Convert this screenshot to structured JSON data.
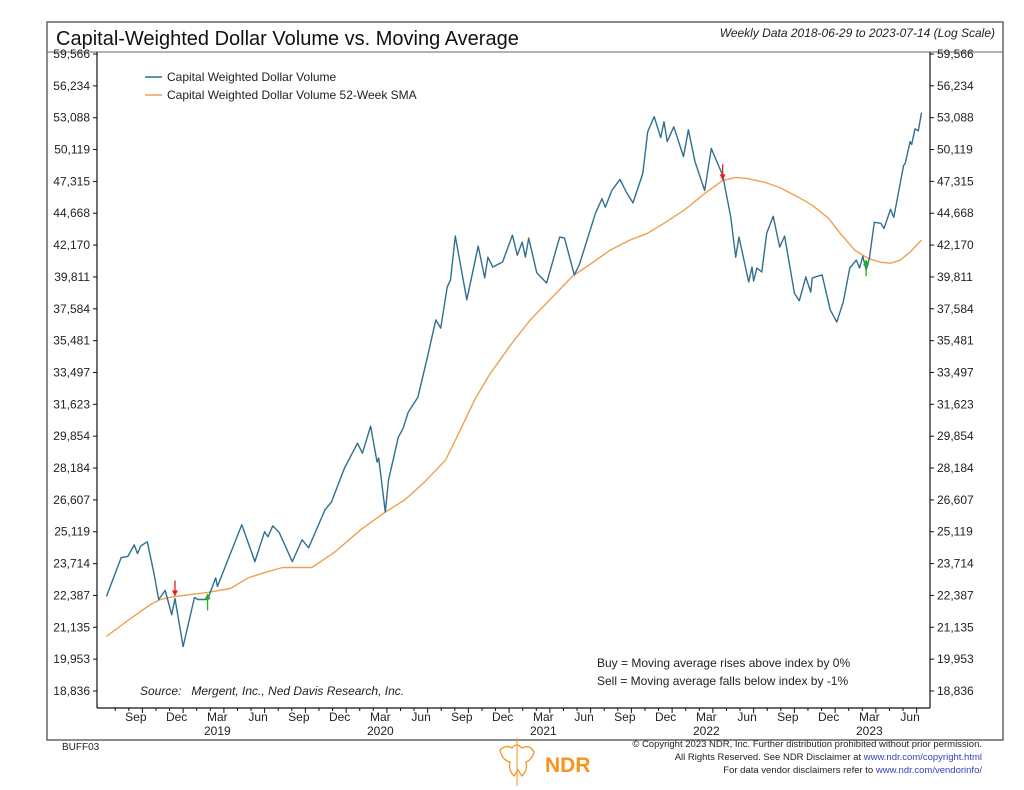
{
  "colors": {
    "volume": "#2f6f8f",
    "sma": "#f0a050",
    "sell": "#e02020",
    "buy": "#20b020",
    "frame": "#555555",
    "ndr_orange": "#f7941d",
    "link": "#3344bb"
  },
  "chart_data": {
    "type": "line",
    "title": "Capital-Weighted Dollar Volume vs. Moving Average",
    "subtitle": "Weekly Data 2018-06-29 to 2023-07-14 (Log Scale)",
    "y_scale": "log",
    "ylim": [
      18400,
      60500
    ],
    "xlim": [
      2018.49,
      2023.54
    ],
    "grid": false,
    "legend_position": "top-left",
    "y_ticks": [
      "59,566",
      "56,234",
      "53,088",
      "50,119",
      "47,315",
      "44,668",
      "42,170",
      "39,811",
      "37,584",
      "35,481",
      "33,497",
      "31,623",
      "29,854",
      "28,184",
      "26,607",
      "25,119",
      "23,714",
      "22,387",
      "21,135",
      "19,953",
      "18,836"
    ],
    "y_tick_values": [
      59566,
      56234,
      53088,
      50119,
      47315,
      44668,
      42170,
      39811,
      37584,
      35481,
      33497,
      31623,
      29854,
      28184,
      26607,
      25119,
      23714,
      22387,
      21135,
      19953,
      18836
    ],
    "x_ticks": [
      {
        "label": "Sep",
        "t": 2018.71
      },
      {
        "label": "Dec",
        "t": 2018.96
      },
      {
        "label": "Mar",
        "t": 2019.21,
        "year": "2019"
      },
      {
        "label": "Jun",
        "t": 2019.46
      },
      {
        "label": "Sep",
        "t": 2019.71
      },
      {
        "label": "Dec",
        "t": 2019.96
      },
      {
        "label": "Mar",
        "t": 2020.21,
        "year": "2020"
      },
      {
        "label": "Jun",
        "t": 2020.46
      },
      {
        "label": "Sep",
        "t": 2020.71
      },
      {
        "label": "Dec",
        "t": 2020.96
      },
      {
        "label": "Mar",
        "t": 2021.21,
        "year": "2021"
      },
      {
        "label": "Jun",
        "t": 2021.46
      },
      {
        "label": "Sep",
        "t": 2021.71
      },
      {
        "label": "Dec",
        "t": 2021.96
      },
      {
        "label": "Mar",
        "t": 2022.21,
        "year": "2022"
      },
      {
        "label": "Jun",
        "t": 2022.46
      },
      {
        "label": "Sep",
        "t": 2022.71
      },
      {
        "label": "Dec",
        "t": 2022.96
      },
      {
        "label": "Mar",
        "t": 2023.21,
        "year": "2023"
      },
      {
        "label": "Jun",
        "t": 2023.46
      }
    ],
    "series": [
      {
        "name": "Capital Weighted Dollar Volume",
        "color_key": "volume",
        "points": [
          [
            2018.53,
            22350
          ],
          [
            2018.62,
            23970
          ],
          [
            2018.66,
            24015
          ],
          [
            2018.7,
            24530
          ],
          [
            2018.72,
            24145
          ],
          [
            2018.74,
            24483
          ],
          [
            2018.78,
            24665
          ],
          [
            2018.82,
            23330
          ],
          [
            2018.85,
            22225
          ],
          [
            2018.89,
            22590
          ],
          [
            2018.93,
            21620
          ],
          [
            2018.95,
            22265
          ],
          [
            2019.0,
            20410
          ],
          [
            2019.07,
            22306
          ],
          [
            2019.09,
            22225
          ],
          [
            2019.15,
            22225
          ],
          [
            2019.2,
            23113
          ],
          [
            2019.21,
            22752
          ],
          [
            2019.36,
            25437
          ],
          [
            2019.44,
            23800
          ],
          [
            2019.5,
            25119
          ],
          [
            2019.52,
            24892
          ],
          [
            2019.55,
            25392
          ],
          [
            2019.59,
            25074
          ],
          [
            2019.67,
            23800
          ],
          [
            2019.73,
            24755
          ],
          [
            2019.77,
            24400
          ],
          [
            2019.87,
            26125
          ],
          [
            2019.91,
            26510
          ],
          [
            2019.99,
            28184
          ],
          [
            2020.07,
            29476
          ],
          [
            2020.1,
            28950
          ],
          [
            2020.15,
            30400
          ],
          [
            2020.19,
            28490
          ],
          [
            2020.2,
            28700
          ],
          [
            2020.24,
            26030
          ],
          [
            2020.26,
            27570
          ],
          [
            2020.32,
            29800
          ],
          [
            2020.35,
            30290
          ],
          [
            2020.38,
            31165
          ],
          [
            2020.44,
            32025
          ],
          [
            2020.5,
            34490
          ],
          [
            2020.55,
            36840
          ],
          [
            2020.58,
            36290
          ],
          [
            2020.62,
            39090
          ],
          [
            2020.64,
            39595
          ],
          [
            2020.67,
            42860
          ],
          [
            2020.74,
            38200
          ],
          [
            2020.81,
            42094
          ],
          [
            2020.85,
            39740
          ],
          [
            2020.87,
            41255
          ],
          [
            2020.9,
            40535
          ],
          [
            2020.96,
            40900
          ],
          [
            2021.02,
            42935
          ],
          [
            2021.05,
            41410
          ],
          [
            2021.08,
            42400
          ],
          [
            2021.1,
            41255
          ],
          [
            2021.12,
            42705
          ],
          [
            2021.17,
            40100
          ],
          [
            2021.23,
            39380
          ],
          [
            2021.31,
            42780
          ],
          [
            2021.34,
            42705
          ],
          [
            2021.4,
            39955
          ],
          [
            2021.43,
            40680
          ],
          [
            2021.53,
            44668
          ],
          [
            2021.57,
            45860
          ],
          [
            2021.59,
            45155
          ],
          [
            2021.63,
            46545
          ],
          [
            2021.68,
            47485
          ],
          [
            2021.72,
            46375
          ],
          [
            2021.76,
            45515
          ],
          [
            2021.82,
            48000
          ],
          [
            2021.85,
            51750
          ],
          [
            2021.89,
            53185
          ],
          [
            2021.93,
            51210
          ],
          [
            2021.95,
            52705
          ],
          [
            2021.97,
            50845
          ],
          [
            2022.01,
            52225
          ],
          [
            2022.07,
            49485
          ],
          [
            2022.1,
            51940
          ],
          [
            2022.14,
            49030
          ],
          [
            2022.2,
            46545
          ],
          [
            2022.24,
            50210
          ],
          [
            2022.31,
            47830
          ],
          [
            2022.36,
            44345
          ],
          [
            2022.39,
            41255
          ],
          [
            2022.41,
            42780
          ],
          [
            2022.47,
            39450
          ],
          [
            2022.49,
            40535
          ],
          [
            2022.5,
            39520
          ],
          [
            2022.52,
            40460
          ],
          [
            2022.55,
            40170
          ],
          [
            2022.58,
            43085
          ],
          [
            2022.62,
            44425
          ],
          [
            2022.66,
            42015
          ],
          [
            2022.69,
            42860
          ],
          [
            2022.75,
            38665
          ],
          [
            2022.78,
            38130
          ],
          [
            2022.82,
            39811
          ],
          [
            2022.85,
            38730
          ],
          [
            2022.86,
            39740
          ],
          [
            2022.92,
            39955
          ],
          [
            2022.97,
            37515
          ],
          [
            2023.01,
            36700
          ],
          [
            2023.05,
            38060
          ],
          [
            2023.09,
            40460
          ],
          [
            2023.13,
            41040
          ],
          [
            2023.15,
            40460
          ],
          [
            2023.17,
            41330
          ],
          [
            2023.19,
            40315
          ],
          [
            2023.21,
            41180
          ],
          [
            2023.24,
            43940
          ],
          [
            2023.28,
            43860
          ],
          [
            2023.3,
            43455
          ],
          [
            2023.34,
            44990
          ],
          [
            2023.36,
            44345
          ],
          [
            2023.42,
            48700
          ],
          [
            2023.43,
            48870
          ],
          [
            2023.46,
            50845
          ],
          [
            2023.47,
            50575
          ],
          [
            2023.49,
            52030
          ],
          [
            2023.51,
            51840
          ],
          [
            2023.53,
            53570
          ]
        ]
      },
      {
        "name": "Capital Weighted Dollar Volume 52-Week SMA",
        "color_key": "sma",
        "points": [
          [
            2018.53,
            20790
          ],
          [
            2018.67,
            21440
          ],
          [
            2018.8,
            22025
          ],
          [
            2018.86,
            22225
          ],
          [
            2018.95,
            22347
          ],
          [
            2019.15,
            22510
          ],
          [
            2019.29,
            22670
          ],
          [
            2019.4,
            23113
          ],
          [
            2019.5,
            23330
          ],
          [
            2019.61,
            23545
          ],
          [
            2019.79,
            23545
          ],
          [
            2019.93,
            24210
          ],
          [
            2020.09,
            25210
          ],
          [
            2020.24,
            26030
          ],
          [
            2020.36,
            26607
          ],
          [
            2020.48,
            27470
          ],
          [
            2020.61,
            28595
          ],
          [
            2020.7,
            30180
          ],
          [
            2020.79,
            31910
          ],
          [
            2020.88,
            33375
          ],
          [
            2021.01,
            35225
          ],
          [
            2021.13,
            36840
          ],
          [
            2021.25,
            38200
          ],
          [
            2021.39,
            39880
          ],
          [
            2021.5,
            40755
          ],
          [
            2021.62,
            41790
          ],
          [
            2021.74,
            42550
          ],
          [
            2021.85,
            43085
          ],
          [
            2021.96,
            43940
          ],
          [
            2022.08,
            44990
          ],
          [
            2022.2,
            46290
          ],
          [
            2022.31,
            47400
          ],
          [
            2022.39,
            47660
          ],
          [
            2022.46,
            47570
          ],
          [
            2022.57,
            47230
          ],
          [
            2022.66,
            46800
          ],
          [
            2022.78,
            45945
          ],
          [
            2022.86,
            45315
          ],
          [
            2022.96,
            44265
          ],
          [
            2023.03,
            43085
          ],
          [
            2023.12,
            41790
          ],
          [
            2023.2,
            41180
          ],
          [
            2023.28,
            40880
          ],
          [
            2023.34,
            40810
          ],
          [
            2023.4,
            41040
          ],
          [
            2023.46,
            41640
          ],
          [
            2023.53,
            42550
          ]
        ]
      }
    ],
    "signals": [
      {
        "type": "sell",
        "t": 2018.95,
        "value": 22347
      },
      {
        "type": "buy",
        "t": 2019.15,
        "value": 22510
      },
      {
        "type": "sell",
        "t": 2022.31,
        "value": 47400
      },
      {
        "type": "buy",
        "t": 2023.19,
        "value": 41180
      }
    ],
    "annotations": {
      "source": "Source:   Mergent, Inc., Ned Davis Research, Inc.",
      "buy_rule": "Buy = Moving average rises above index by 0%",
      "sell_rule": "Sell = Moving average falls below index by -1%"
    }
  },
  "footer": {
    "code": "BUFF03",
    "logo_text": "NDR",
    "copyright": "© Copyright 2023 NDR, Inc. Further distribution prohibited without prior permission.",
    "rights_prefix": "All Rights Reserved. See NDR Disclaimer at ",
    "rights_link": "www.ndr.com/copyright.html",
    "vendor_prefix": "For data vendor disclaimers refer to ",
    "vendor_link": "www.ndr.com/vendorinfo/"
  }
}
